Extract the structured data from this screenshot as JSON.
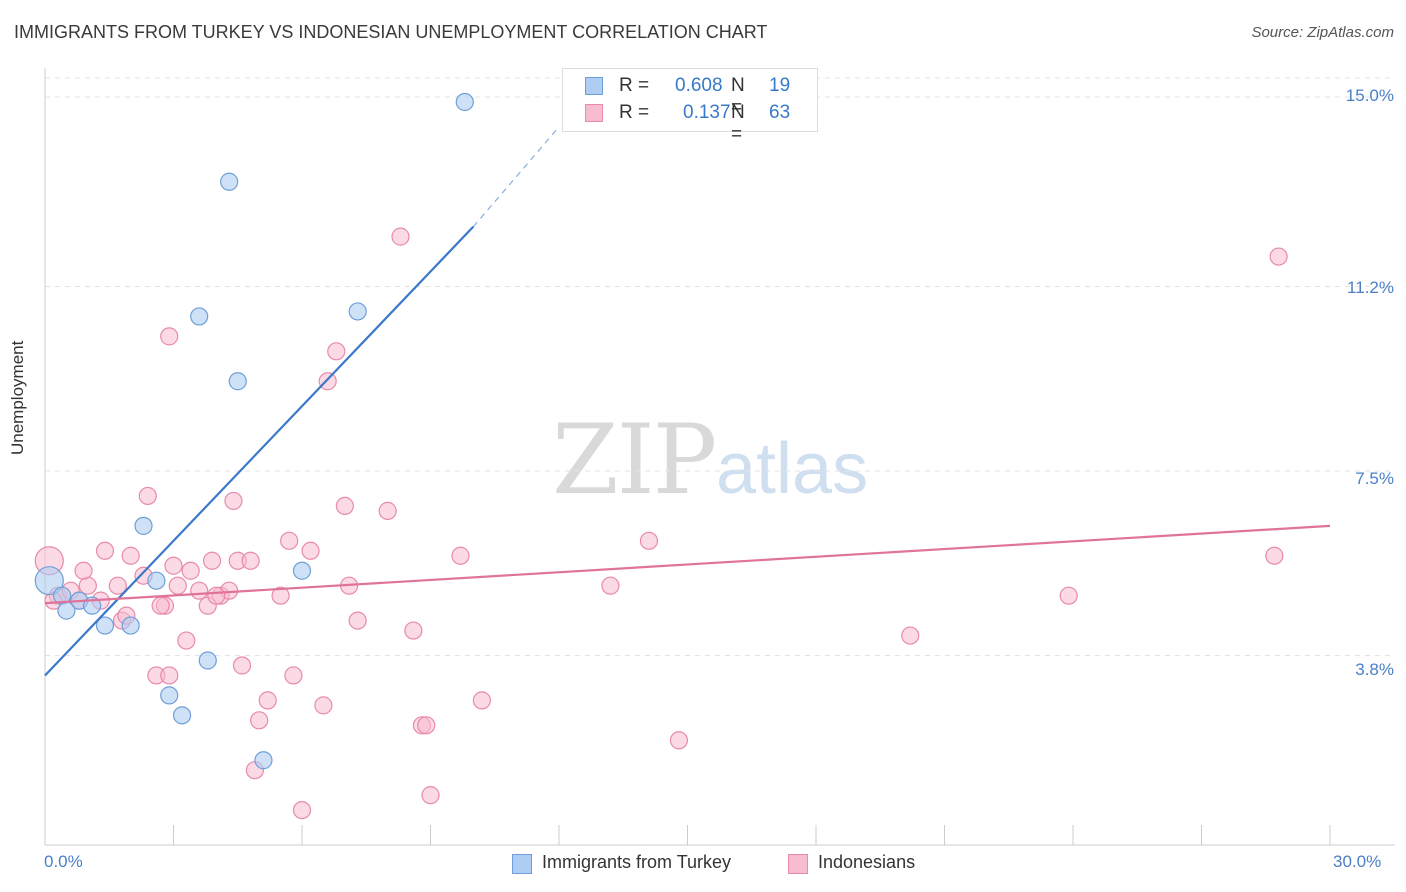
{
  "header": {
    "title": "IMMIGRANTS FROM TURKEY VS INDONESIAN UNEMPLOYMENT CORRELATION CHART",
    "source": "Source: ZipAtlas.com"
  },
  "watermark": {
    "zip": "ZIP",
    "atlas": "atlas"
  },
  "legend": {
    "turkey": {
      "r_label": "R =",
      "r_value": "0.608",
      "n_label": "N =",
      "n_value": "19"
    },
    "indonesians": {
      "r_label": "R =",
      "r_value": "0.137",
      "n_label": "N =",
      "n_value": "63"
    }
  },
  "chart_data": {
    "type": "scatter",
    "title": "IMMIGRANTS FROM TURKEY VS INDONESIAN UNEMPLOYMENT CORRELATION CHART",
    "xlabel": "",
    "ylabel": "Unemployment",
    "xlim": [
      0,
      30
    ],
    "ylim": [
      0,
      15.7
    ],
    "x_tick_labels": [
      "0.0%",
      "30.0%"
    ],
    "y_ticks": [
      3.8,
      7.5,
      11.2,
      15.0
    ],
    "y_tick_labels": [
      "3.8%",
      "7.5%",
      "11.2%",
      "15.0%"
    ],
    "grid": true,
    "legend_position": "top-center",
    "colors": {
      "turkey_fill": "#aecdf2",
      "turkey_stroke": "#6f9fd8",
      "turkey_line": "#3a78c9",
      "indo_fill": "#f7bcd0",
      "indo_stroke": "#e88aab",
      "indo_line": "#e0739a"
    },
    "series": [
      {
        "name": "Immigrants from Turkey",
        "r": 0.608,
        "n": 19,
        "points": [
          [
            9.8,
            14.9
          ],
          [
            4.3,
            13.3
          ],
          [
            3.6,
            10.6
          ],
          [
            7.3,
            10.7
          ],
          [
            4.5,
            9.3
          ],
          [
            2.3,
            6.4
          ],
          [
            6.0,
            5.5
          ],
          [
            2.6,
            5.3
          ],
          [
            0.1,
            5.3
          ],
          [
            0.4,
            5.0
          ],
          [
            0.8,
            4.9
          ],
          [
            1.1,
            4.8
          ],
          [
            0.5,
            4.7
          ],
          [
            1.4,
            4.4
          ],
          [
            2.0,
            4.4
          ],
          [
            3.8,
            3.7
          ],
          [
            2.9,
            3.0
          ],
          [
            3.2,
            2.6
          ],
          [
            5.1,
            1.7
          ]
        ],
        "trend": {
          "x": [
            0.0,
            10.0
          ],
          "y": [
            3.4,
            12.4
          ],
          "dashed_to": [
            12.0,
            14.4
          ]
        }
      },
      {
        "name": "Indonesians",
        "r": 0.137,
        "n": 63,
        "points": [
          [
            0.1,
            5.7
          ],
          [
            0.3,
            5.0
          ],
          [
            0.6,
            5.1
          ],
          [
            0.8,
            4.9
          ],
          [
            1.0,
            5.2
          ],
          [
            0.9,
            5.5
          ],
          [
            1.4,
            5.9
          ],
          [
            1.7,
            5.2
          ],
          [
            1.8,
            4.5
          ],
          [
            2.0,
            5.8
          ],
          [
            2.3,
            5.4
          ],
          [
            2.4,
            7.0
          ],
          [
            2.8,
            4.8
          ],
          [
            3.0,
            5.6
          ],
          [
            3.1,
            5.2
          ],
          [
            3.3,
            4.1
          ],
          [
            2.6,
            3.4
          ],
          [
            2.9,
            3.4
          ],
          [
            2.9,
            10.2
          ],
          [
            3.6,
            5.1
          ],
          [
            3.9,
            5.7
          ],
          [
            4.1,
            5.0
          ],
          [
            4.3,
            5.1
          ],
          [
            4.5,
            5.7
          ],
          [
            4.6,
            3.6
          ],
          [
            4.8,
            5.7
          ],
          [
            5.0,
            2.5
          ],
          [
            5.2,
            2.9
          ],
          [
            5.5,
            5.0
          ],
          [
            5.7,
            6.1
          ],
          [
            5.8,
            3.4
          ],
          [
            6.0,
            0.7
          ],
          [
            6.2,
            5.9
          ],
          [
            6.5,
            2.8
          ],
          [
            6.6,
            9.3
          ],
          [
            6.8,
            9.9
          ],
          [
            7.0,
            6.8
          ],
          [
            7.1,
            5.2
          ],
          [
            7.3,
            4.5
          ],
          [
            8.0,
            6.7
          ],
          [
            8.3,
            12.2
          ],
          [
            8.6,
            4.3
          ],
          [
            8.8,
            2.4
          ],
          [
            9.0,
            1.0
          ],
          [
            9.7,
            5.8
          ],
          [
            10.2,
            2.9
          ],
          [
            13.2,
            5.2
          ],
          [
            14.1,
            6.1
          ],
          [
            14.8,
            2.1
          ],
          [
            20.2,
            4.2
          ],
          [
            23.9,
            5.0
          ],
          [
            28.7,
            5.8
          ],
          [
            28.8,
            11.8
          ],
          [
            3.8,
            4.8
          ],
          [
            4.9,
            1.5
          ],
          [
            8.9,
            2.4
          ],
          [
            1.3,
            4.9
          ],
          [
            1.9,
            4.6
          ],
          [
            3.4,
            5.5
          ],
          [
            0.2,
            4.9
          ],
          [
            4.4,
            6.9
          ],
          [
            4.0,
            5.0
          ],
          [
            2.7,
            4.8
          ]
        ],
        "trend": {
          "x": [
            0.0,
            30.0
          ],
          "y": [
            4.85,
            6.4
          ]
        }
      }
    ]
  },
  "bottom_legend": {
    "turkey": "Immigrants from Turkey",
    "indonesians": "Indonesians"
  }
}
